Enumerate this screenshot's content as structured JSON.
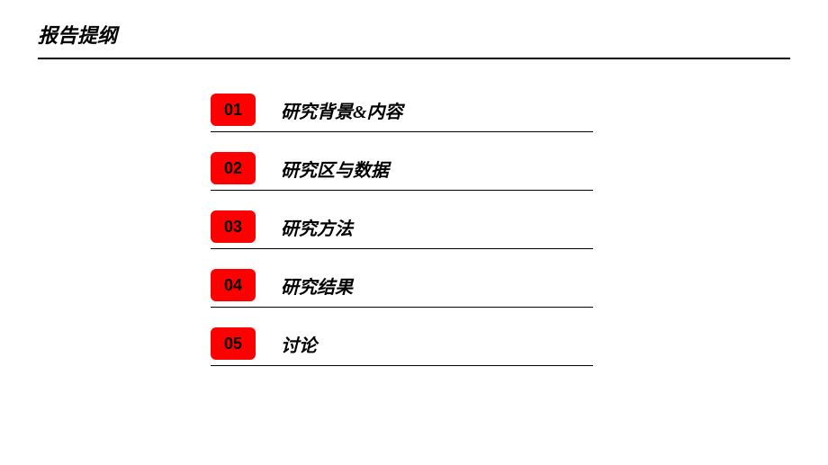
{
  "header": {
    "title": "报告提纲"
  },
  "outline": {
    "items": [
      {
        "number": "01",
        "label": "研究背景&内容"
      },
      {
        "number": "02",
        "label": "研究区与数据"
      },
      {
        "number": "03",
        "label": "研究方法"
      },
      {
        "number": "04",
        "label": "研究结果"
      },
      {
        "number": "05",
        "label": "讨论"
      }
    ]
  },
  "styling": {
    "badge_bg_color": "#ff0000",
    "badge_text_color": "#000000",
    "badge_width": 50,
    "badge_height": 36,
    "badge_border_radius": 6,
    "badge_fontsize": 18,
    "title_fontsize": 22,
    "label_fontsize": 20,
    "underline_color": "#000000",
    "underline_height": 2,
    "item_underline_height": 1.5,
    "item_width": 425,
    "background_color": "#ffffff",
    "text_color": "#000000",
    "font_style": "italic",
    "font_weight": "bold"
  }
}
